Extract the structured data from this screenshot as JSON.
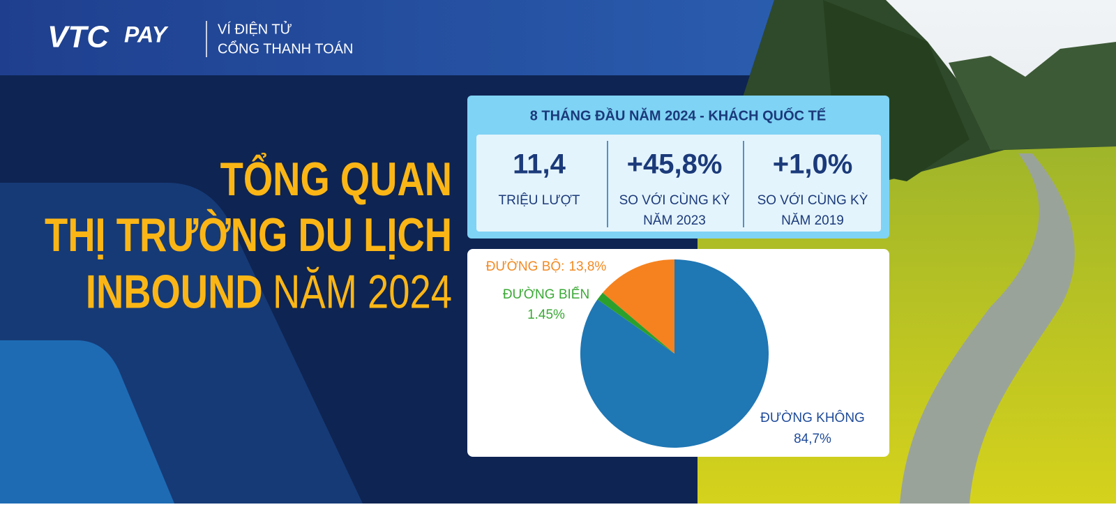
{
  "header": {
    "logo": [
      "VTC",
      "PAY"
    ],
    "tagline": [
      "VÍ ĐIỆN TỬ",
      "CỔNG THANH TOÁN"
    ]
  },
  "title": {
    "lines": [
      "TỔNG QUAN",
      "THỊ TRƯỜNG DU LỊCH"
    ],
    "last_bold": "INBOUND",
    "last_light": "NĂM 2024"
  },
  "stats": {
    "heading": "8 THÁNG ĐẦU NĂM 2024 - KHÁCH QUỐC TẾ",
    "items": [
      {
        "value": "11,4",
        "label": [
          "TRIỆU LƯỢT"
        ]
      },
      {
        "value": "+45,8%",
        "label": [
          "SO VỚI CÙNG KỲ",
          "NĂM 2023"
        ]
      },
      {
        "value": "+1,0%",
        "label": [
          "SO VỚI CÙNG KỲ",
          "NĂM 2019"
        ]
      }
    ]
  },
  "chart_data": {
    "type": "pie",
    "categories": [
      "ĐƯỜNG KHÔNG",
      "ĐƯỜNG BIỂN",
      "ĐƯỜNG BỘ:"
    ],
    "values": [
      84.7,
      1.45,
      13.8
    ],
    "value_labels": [
      "84,7%",
      "1.45%",
      "13,8%"
    ],
    "colors": [
      "#1f77b4",
      "#2ca02c",
      "#f5821f"
    ],
    "label_colors": [
      "#1f4b9a",
      "#3aa935",
      "#f28a22"
    ]
  }
}
